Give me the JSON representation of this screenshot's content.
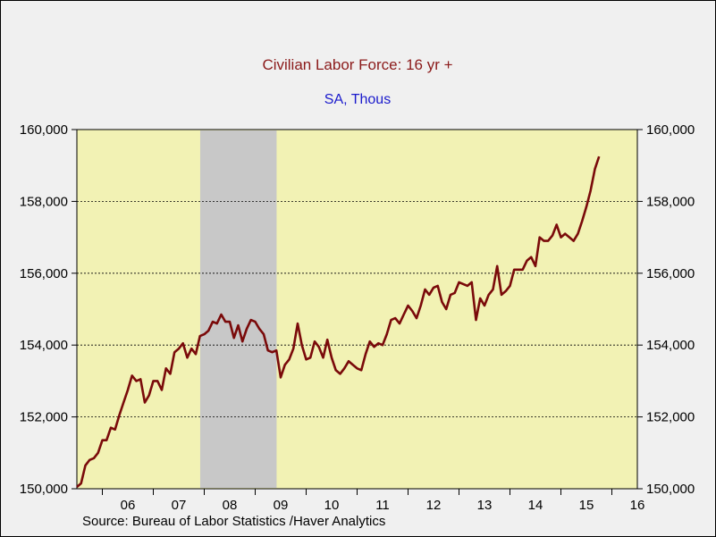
{
  "chart_data": {
    "type": "line",
    "title": "Civilian Labor Force: 16 yr +",
    "subtitle": "SA, Thous",
    "source": "Source:  Bureau of Labor Statistics /Haver Analytics",
    "colors": {
      "line": "#7a0a0a",
      "plot_bg": "#f2f2b4",
      "recession": "#c8c8c8",
      "title": "#8b1a1a",
      "subtitle": "#1a1acc"
    },
    "grid": "horizontal-dashed",
    "ylim": [
      150000,
      160000
    ],
    "y_ticks": [
      150000,
      152000,
      154000,
      156000,
      158000,
      160000
    ],
    "y_tick_labels": [
      "150,000",
      "152,000",
      "154,000",
      "156,000",
      "158,000",
      "160,000"
    ],
    "xlim": [
      2005.5,
      2016.5
    ],
    "x_tick_labels": [
      "06",
      "07",
      "08",
      "09",
      "10",
      "11",
      "12",
      "13",
      "14",
      "15",
      "16"
    ],
    "recession": [
      2007.92,
      2009.42
    ],
    "series": [
      {
        "start": 2005.5,
        "step": 0.0833333,
        "values": [
          150050,
          150150,
          150650,
          150800,
          150850,
          151000,
          151350,
          151350,
          151700,
          151650,
          152050,
          152400,
          152750,
          153150,
          153000,
          153050,
          152400,
          152600,
          153000,
          153000,
          152750,
          153350,
          153200,
          153800,
          153900,
          154050,
          153650,
          153900,
          153750,
          154250,
          154300,
          154400,
          154650,
          154600,
          154850,
          154650,
          154650,
          154200,
          154550,
          154100,
          154450,
          154700,
          154650,
          154450,
          154300,
          153850,
          153800,
          153850,
          153100,
          153450,
          153600,
          153900,
          154600,
          154000,
          153600,
          153650,
          154100,
          153950,
          153650,
          154150,
          153650,
          153300,
          153200,
          153350,
          153550,
          153450,
          153350,
          153300,
          153750,
          154100,
          153950,
          154050,
          154000,
          154300,
          154700,
          154750,
          154600,
          154850,
          155100,
          154950,
          154750,
          155100,
          155550,
          155400,
          155600,
          155650,
          155200,
          155000,
          155400,
          155450,
          155750,
          155700,
          155650,
          155750,
          154700,
          155300,
          155100,
          155400,
          155550,
          156200,
          155400,
          155500,
          155650,
          156100,
          156100,
          156100,
          156350,
          156450,
          156200,
          157000,
          156900,
          156900,
          157050,
          157350,
          157000,
          157100,
          157000,
          156900,
          157100,
          157450,
          157850,
          158300,
          158900,
          159250
        ]
      }
    ]
  }
}
